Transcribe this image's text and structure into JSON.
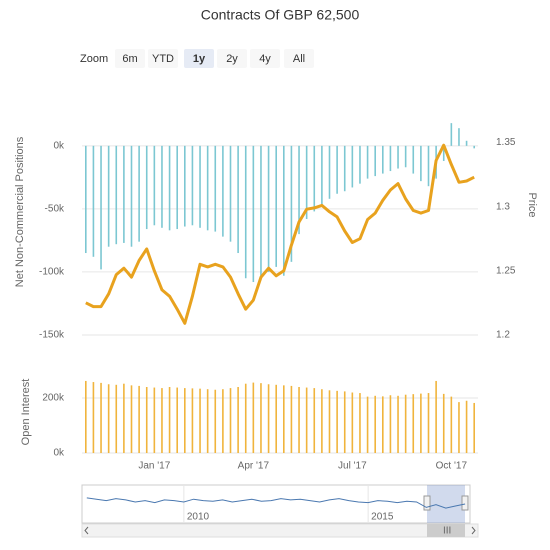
{
  "range_selector": {
    "label": "Zoom",
    "buttons": [
      "6m",
      "YTD",
      "1y",
      "2y",
      "4y",
      "All"
    ],
    "selected": 2
  },
  "chart_data": [
    {
      "type": "bar",
      "title": "Contracts Of GBP 62,500",
      "y_label": "Net Non-Commercial Positions",
      "y2_label": "Price",
      "categories": [
        null,
        null,
        null,
        null,
        null,
        null,
        null,
        null,
        null,
        "Jan '17",
        null,
        null,
        null,
        null,
        null,
        null,
        null,
        null,
        null,
        null,
        null,
        null,
        "Apr '17",
        null,
        null,
        null,
        null,
        null,
        null,
        null,
        null,
        null,
        null,
        null,
        null,
        "Jul '17",
        null,
        null,
        null,
        null,
        null,
        null,
        null,
        null,
        null,
        null,
        null,
        null,
        "Oct '17",
        null,
        null,
        null
      ],
      "series": [
        {
          "type": "bar",
          "color": "#7cc7d2",
          "values": [
            -85000,
            -88000,
            -98000,
            -80000,
            -78000,
            -77000,
            -80000,
            -76000,
            -66000,
            -63000,
            -65000,
            -67000,
            -66000,
            -64000,
            -63000,
            -65000,
            -67000,
            -68000,
            -72000,
            -76000,
            -85000,
            -105000,
            -108000,
            -105000,
            -100000,
            -96000,
            -103000,
            -92000,
            -70000,
            -58000,
            -52000,
            -47000,
            -42000,
            -38000,
            -36000,
            -33000,
            -30000,
            -26000,
            -24000,
            -22000,
            -20000,
            -18000,
            -17000,
            -22000,
            -28000,
            -32000,
            -26000,
            -12000,
            18000,
            14000,
            4000,
            -2000
          ]
        },
        {
          "type": "line",
          "axis": "y2",
          "color": "#e8a21e",
          "values": [
            1.225,
            1.222,
            1.222,
            1.232,
            1.247,
            1.252,
            1.245,
            1.258,
            1.267,
            1.25,
            1.235,
            1.23,
            1.22,
            1.209,
            1.23,
            1.255,
            1.253,
            1.255,
            1.253,
            1.245,
            1.232,
            1.22,
            1.227,
            1.245,
            1.252,
            1.246,
            1.25,
            1.27,
            1.288,
            1.298,
            1.299,
            1.301,
            1.296,
            1.292,
            1.281,
            1.272,
            1.275,
            1.29,
            1.295,
            1.305,
            1.313,
            1.318,
            1.306,
            1.297,
            1.295,
            1.297,
            1.336,
            1.348,
            1.333,
            1.319,
            1.32,
            1.323
          ]
        }
      ],
      "ylim": [
        -160000,
        30000
      ],
      "yticks": [
        {
          "value": 0,
          "label": "0k"
        },
        {
          "value": -50000,
          "label": "-50k"
        },
        {
          "value": -100000,
          "label": "-100k"
        },
        {
          "value": -150000,
          "label": "-150k"
        }
      ],
      "y2lim": [
        1.19,
        1.377
      ],
      "y2ticks": [
        1.35,
        1.3,
        1.25,
        1.2
      ],
      "grid": true
    },
    {
      "type": "bar",
      "y_label": "Open Interest",
      "series": [
        {
          "color": "#f0b43c",
          "values": [
            262000,
            258000,
            255000,
            250000,
            248000,
            252000,
            246000,
            244000,
            240000,
            238000,
            236000,
            240000,
            238000,
            236000,
            235000,
            234000,
            232000,
            230000,
            232000,
            236000,
            240000,
            252000,
            256000,
            254000,
            250000,
            248000,
            246000,
            244000,
            240000,
            238000,
            236000,
            232000,
            228000,
            226000,
            224000,
            220000,
            218000,
            205000,
            208000,
            206000,
            210000,
            208000,
            212000,
            214000,
            216000,
            218000,
            262000,
            215000,
            205000,
            185000,
            190000,
            182000
          ]
        }
      ],
      "ylim": [
        0,
        300000
      ],
      "yticks": [
        {
          "value": 200000,
          "label": "200k"
        },
        {
          "value": 0,
          "label": "0k"
        }
      ],
      "grid": true
    },
    {
      "type": "line",
      "categories": [
        null,
        null,
        null,
        null,
        null,
        null,
        null,
        null,
        null,
        null,
        "2010",
        null,
        null,
        null,
        null,
        null,
        null,
        null,
        null,
        null,
        null,
        null,
        null,
        null,
        null,
        null,
        null,
        null,
        null,
        "2015",
        null,
        null,
        null,
        null,
        null,
        null,
        null,
        null,
        null,
        null
      ],
      "series": [
        {
          "color": "#4a78b0",
          "values": [
            1.64,
            1.62,
            1.6,
            1.63,
            1.61,
            1.58,
            1.6,
            1.57,
            1.61,
            1.6,
            1.58,
            1.62,
            1.6,
            1.59,
            1.61,
            1.58,
            1.6,
            1.62,
            1.59,
            1.6,
            1.63,
            1.61,
            1.62,
            1.6,
            1.58,
            1.61,
            1.63,
            1.6,
            1.58,
            1.57,
            1.6,
            1.59,
            1.57,
            1.59,
            1.58,
            1.5,
            1.54,
            1.49,
            1.52,
            1.55
          ]
        }
      ],
      "ylim": [
        1.3,
        1.8
      ]
    }
  ]
}
